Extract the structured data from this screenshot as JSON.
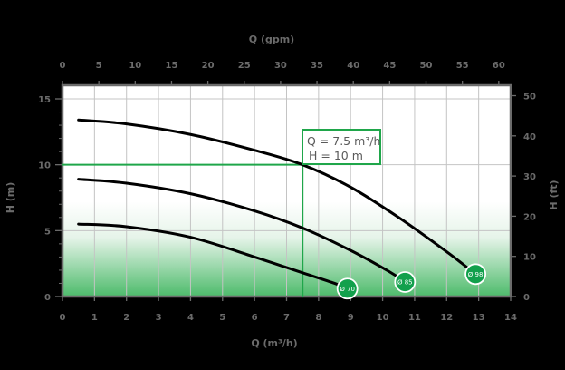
{
  "chart_data": {
    "type": "line",
    "title": "",
    "xlabel": "Q (m³/h)",
    "ylabel": "H (m)",
    "x2label": "Q (gpm)",
    "y2label": "H (ft)",
    "xlim": [
      0,
      14
    ],
    "ylim": [
      0,
      15
    ],
    "x2lim": [
      0,
      61.6
    ],
    "y2lim": [
      0,
      49.2
    ],
    "x_ticks": [
      "0",
      "1",
      "2",
      "3",
      "4",
      "5",
      "6",
      "7",
      "8",
      "9",
      "10",
      "11",
      "12",
      "13",
      "14"
    ],
    "y_ticks": [
      "0",
      "5",
      "10",
      "15"
    ],
    "x2_ticks": [
      "0",
      "5",
      "10",
      "15",
      "20",
      "25",
      "30",
      "35",
      "40",
      "45",
      "50",
      "55",
      "60"
    ],
    "y2_ticks": [
      "0",
      "10",
      "20",
      "30",
      "40",
      "50"
    ],
    "grid": true,
    "legend": "inline markers at curve ends",
    "series": [
      {
        "name": "Ø 98",
        "x": [
          0.5,
          2,
          4,
          6,
          7.5,
          9,
          10.5,
          12,
          12.9
        ],
        "y": [
          13.4,
          13.1,
          12.3,
          11.1,
          10.0,
          8.3,
          6.0,
          3.4,
          1.7
        ]
      },
      {
        "name": "Ø 85",
        "x": [
          0.5,
          2,
          4,
          6,
          7.5,
          9,
          10.2,
          10.7
        ],
        "y": [
          8.9,
          8.6,
          7.8,
          6.5,
          5.2,
          3.5,
          1.9,
          1.1
        ]
      },
      {
        "name": "Ø 70",
        "x": [
          0.5,
          2,
          4,
          6,
          7.5,
          8.5,
          8.9
        ],
        "y": [
          5.5,
          5.3,
          4.5,
          3.0,
          1.8,
          1.0,
          0.6
        ]
      }
    ],
    "annotations": [
      {
        "type": "operating-point",
        "x": 7.5,
        "y": 10,
        "lines": [
          "Q = 7.5 m³/h",
          "H = 10 m"
        ],
        "color": "#1fa64a"
      }
    ]
  },
  "colors": {
    "background": "#000000",
    "plot_top": "#ffffff",
    "plot_bottom": "#4dbb6b",
    "grid": "#c4c4c4",
    "axis": "#6b6b6b",
    "curve": "#000000",
    "accent": "#1fa64a",
    "marker": "#12a04c"
  },
  "labels": {
    "x_bottom": "Q (m³/h)",
    "x_top": "Q (gpm)",
    "y_left": "H (m)",
    "y_right": "H (ft)",
    "annotation_line1": "Q = 7.5 m³/h",
    "annotation_line2": "H = 10 m",
    "marker_98": "Ø 98",
    "marker_85": "Ø 85",
    "marker_70": "Ø 70"
  }
}
